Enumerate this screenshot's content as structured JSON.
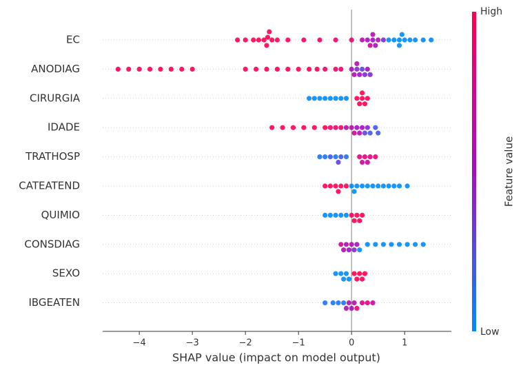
{
  "chart_data": {
    "type": "beeswarm",
    "x_label": "SHAP value (impact on model output)",
    "colorbar_label": "Feature value",
    "colorbar_high": "High",
    "colorbar_low": "Low",
    "colormap": [
      "#008bfb",
      "#a30fc2",
      "#ff0052"
    ],
    "xlim": [
      -4.69,
      1.88
    ],
    "xticks": [
      {
        "value": -4,
        "label": "−4"
      },
      {
        "value": -3,
        "label": "−3"
      },
      {
        "value": -2,
        "label": "−2"
      },
      {
        "value": -1,
        "label": "−1"
      },
      0,
      1
    ],
    "series": [
      {
        "name": "EC",
        "values": [
          -2.15,
          -2.0,
          -1.85,
          -1.75,
          -1.65,
          -1.6,
          -1.58,
          -1.55,
          -1.5,
          -1.4,
          -1.2,
          -0.9,
          -0.6,
          -0.3,
          0.0,
          0.2,
          0.3,
          0.35,
          0.4,
          0.4,
          0.45,
          0.5,
          0.6,
          0.7,
          0.8,
          0.9,
          0.9,
          0.95,
          1.0,
          1.1,
          1.2,
          1.35,
          1.5
        ],
        "feature_values": [
          1,
          1,
          1,
          1,
          1,
          1,
          1,
          1,
          1,
          1,
          1,
          0.9,
          0.9,
          0.9,
          0.9,
          0.6,
          0.5,
          0.7,
          0.5,
          0.6,
          0.5,
          0.6,
          0.4,
          0,
          0,
          0,
          0,
          0,
          0,
          0,
          0,
          0,
          0
        ]
      },
      {
        "name": "ANODIAG",
        "values": [
          -4.4,
          -4.2,
          -4.0,
          -3.8,
          -3.6,
          -3.4,
          -3.2,
          -3.0,
          -2.0,
          -1.8,
          -1.6,
          -1.4,
          -1.2,
          -1.0,
          -0.8,
          -0.65,
          -0.5,
          -0.3,
          -0.2,
          0.0,
          0.05,
          0.1,
          0.15,
          0.2,
          0.1,
          0.25,
          0.3,
          0.35
        ],
        "feature_values": [
          1,
          1,
          1,
          1,
          1,
          1,
          1,
          1,
          1,
          1,
          1,
          1,
          1,
          1,
          1,
          1,
          0.9,
          0.9,
          0.9,
          0.5,
          0.6,
          0.4,
          0.5,
          0.3,
          0.6,
          0.4,
          0.5,
          0.4
        ]
      },
      {
        "name": "CIRURGIA",
        "values": [
          -0.8,
          -0.7,
          -0.6,
          -0.5,
          -0.4,
          -0.3,
          -0.2,
          -0.1,
          0.1,
          0.15,
          0.2,
          0.2,
          0.25,
          0.3
        ],
        "feature_values": [
          0,
          0,
          0,
          0,
          0,
          0,
          0,
          0,
          1,
          1,
          1,
          1,
          1,
          1
        ]
      },
      {
        "name": "IDADE",
        "values": [
          -1.5,
          -1.3,
          -1.1,
          -0.9,
          -0.7,
          -0.5,
          -0.4,
          -0.3,
          -0.2,
          -0.1,
          0.0,
          0.05,
          0.1,
          0.15,
          0.2,
          0.3,
          0.25,
          0.35,
          0.45,
          0.5
        ],
        "feature_values": [
          1,
          1,
          1,
          1,
          1,
          1,
          0.9,
          0.9,
          0.9,
          0.6,
          0.6,
          0.7,
          0.5,
          0.6,
          0.5,
          0.4,
          0.3,
          0.2,
          0.2,
          0.2
        ]
      },
      {
        "name": "TRATHOSP",
        "values": [
          -0.6,
          -0.5,
          -0.4,
          -0.3,
          -0.25,
          -0.2,
          -0.1,
          0.15,
          0.2,
          0.25,
          0.3,
          0.35,
          0.45
        ],
        "feature_values": [
          0.1,
          0.1,
          0.2,
          0.1,
          0.3,
          0.2,
          0.1,
          0.8,
          0.7,
          0.8,
          0.7,
          0.8,
          0.9
        ]
      },
      {
        "name": "CATEATEND",
        "values": [
          -0.5,
          -0.4,
          -0.3,
          -0.25,
          -0.2,
          -0.1,
          0.0,
          0.05,
          0.1,
          0.2,
          0.3,
          0.4,
          0.5,
          0.6,
          0.7,
          0.8,
          0.9,
          1.05
        ],
        "feature_values": [
          1,
          1,
          1,
          1,
          1,
          1,
          0,
          0,
          0,
          0,
          0,
          0,
          0,
          0,
          0,
          0,
          0,
          0
        ]
      },
      {
        "name": "QUIMIO",
        "values": [
          -0.5,
          -0.4,
          -0.3,
          -0.2,
          -0.1,
          0.0,
          0.05,
          0.1,
          0.15,
          0.2
        ],
        "feature_values": [
          0,
          0,
          0,
          0,
          0,
          1,
          1,
          1,
          1,
          1
        ]
      },
      {
        "name": "CONSDIAG",
        "values": [
          -0.2,
          -0.15,
          -0.1,
          -0.05,
          0.0,
          0.05,
          0.1,
          0.15,
          0.3,
          0.45,
          0.6,
          0.75,
          0.9,
          1.05,
          1.2,
          1.35
        ],
        "feature_values": [
          0.7,
          0.6,
          0.6,
          0.5,
          0.6,
          0.4,
          0.5,
          0,
          0,
          0,
          0,
          0,
          0,
          0,
          0,
          0
        ]
      },
      {
        "name": "SEXO",
        "values": [
          -0.3,
          -0.2,
          -0.15,
          -0.1,
          -0.05,
          0.05,
          0.1,
          0.15,
          0.2,
          0.25
        ],
        "feature_values": [
          0,
          0,
          0,
          0,
          0,
          1,
          1,
          1,
          1,
          1
        ]
      },
      {
        "name": "IBGEATEN",
        "values": [
          -0.5,
          -0.35,
          -0.25,
          -0.15,
          -0.1,
          -0.05,
          0.0,
          0.05,
          0.1,
          0.2,
          0.3,
          0.4
        ],
        "feature_values": [
          0.1,
          0.1,
          0.1,
          0.1,
          0.6,
          0.6,
          0.5,
          0.6,
          0.9,
          0.8,
          0.8,
          0.7
        ]
      }
    ]
  }
}
